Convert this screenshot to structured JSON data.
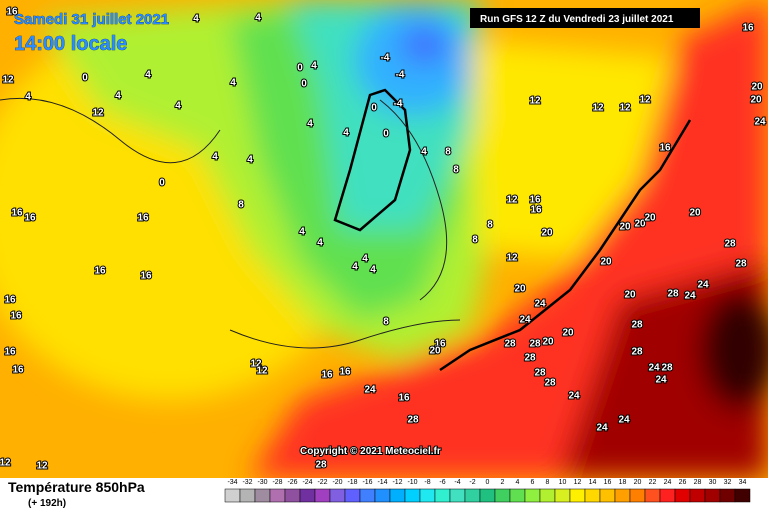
{
  "header": {
    "date": "Samedi 31 juillet 2021",
    "time": "14:00 locale",
    "run": "Run GFS 12 Z du Vendredi 23 juillet 2021"
  },
  "map": {
    "labels": [
      16,
      4,
      4,
      0,
      4,
      4,
      4,
      12,
      12,
      4,
      4,
      4,
      4,
      4,
      4,
      0,
      0,
      4,
      -4,
      -4,
      -4,
      0,
      0,
      4,
      8,
      8,
      8,
      0,
      4,
      4,
      16,
      16,
      16,
      16,
      16,
      16,
      16,
      16,
      16,
      12,
      12,
      12,
      12,
      16,
      16,
      8,
      4,
      4,
      4,
      12,
      12,
      12,
      12,
      12,
      12,
      16,
      16,
      16,
      20,
      20,
      24,
      24,
      28,
      28,
      28,
      28,
      28,
      24,
      20,
      20,
      20,
      20,
      20,
      20,
      28,
      28,
      28,
      24,
      24,
      20,
      20,
      28,
      28,
      24,
      28,
      24,
      24,
      24,
      28,
      24,
      16,
      16,
      20,
      28,
      20,
      20,
      24,
      16,
      8,
      8
    ]
  },
  "copyright": "Copyright © 2021 Meteociel.fr",
  "legend": {
    "title": "Température 850hPa",
    "lead": "(+ 192h)",
    "ticks": [
      -34,
      -32,
      -30,
      -28,
      -26,
      -24,
      -22,
      -20,
      -18,
      -16,
      -14,
      -12,
      -10,
      -8,
      -6,
      -4,
      -2,
      0,
      2,
      4,
      6,
      8,
      10,
      12,
      14,
      16,
      18,
      20,
      22,
      24,
      26,
      28,
      30,
      32,
      34
    ],
    "colors": [
      "#d0d0d0",
      "#b4b4b4",
      "#a08ca0",
      "#b070b0",
      "#9050a0",
      "#7030a0",
      "#a040c0",
      "#8060e0",
      "#6060ff",
      "#4080ff",
      "#2090ff",
      "#00b0ff",
      "#00d0ff",
      "#20e8f0",
      "#30f0d0",
      "#40e0c0",
      "#30d0a0",
      "#20c080",
      "#40d060",
      "#60e050",
      "#90f040",
      "#b0f030",
      "#d8f020",
      "#fff000",
      "#ffd800",
      "#ffc000",
      "#ffa000",
      "#ff8000",
      "#ff5020",
      "#ff2020",
      "#e00000",
      "#c00000",
      "#a00000",
      "#700000",
      "#400000"
    ]
  }
}
